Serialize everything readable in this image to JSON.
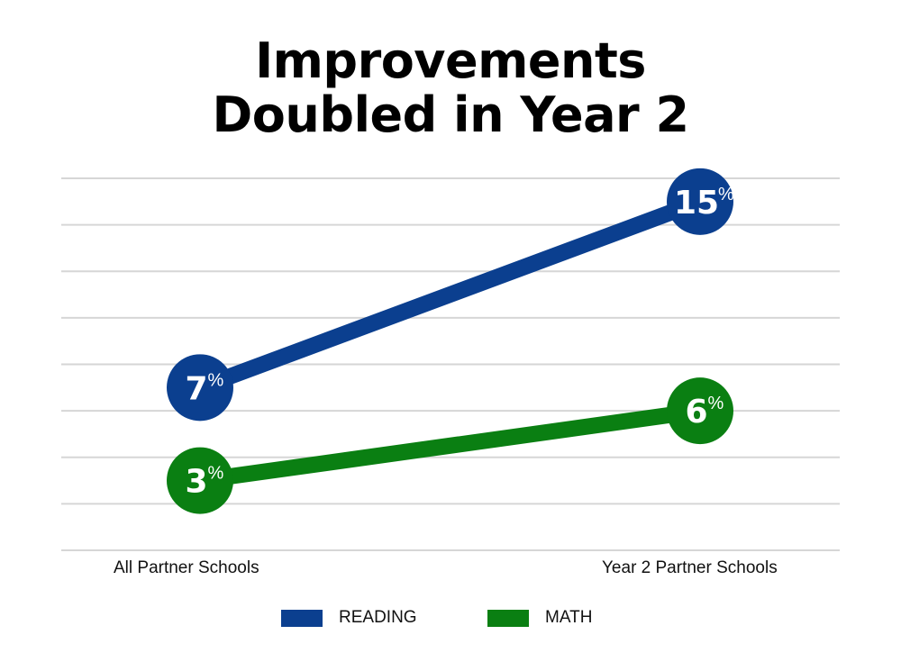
{
  "chart_data": {
    "type": "line",
    "title": [
      "Improvements",
      "Doubled in Year 2"
    ],
    "categories": [
      "All Partner Schools",
      "Year 2 Partner Schools"
    ],
    "series": [
      {
        "name": "READING",
        "values": [
          7,
          15
        ],
        "labels": [
          "7",
          "15"
        ],
        "color": "#0b3f8f"
      },
      {
        "name": "MATH",
        "values": [
          3,
          6
        ],
        "labels": [
          "3",
          "6"
        ],
        "color": "#0a7f12"
      }
    ],
    "unit": "%",
    "ylim": [
      0,
      16
    ],
    "grid": true,
    "legend": "bottom"
  }
}
